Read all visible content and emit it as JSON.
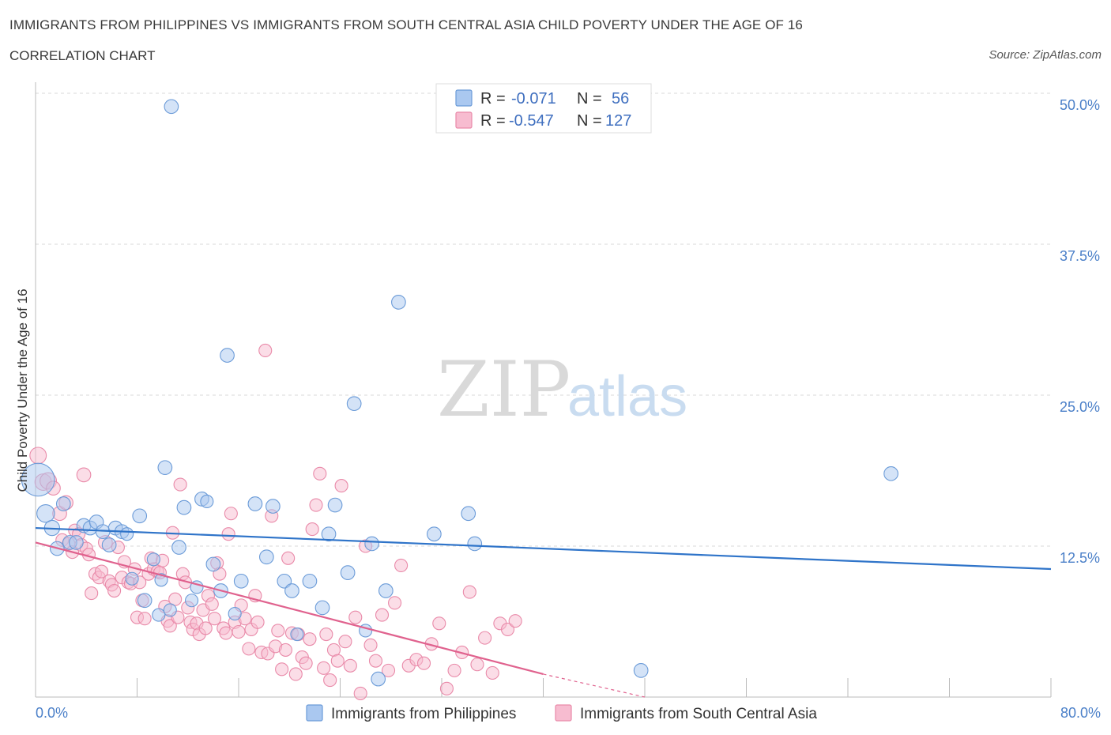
{
  "header": {
    "title": "IMMIGRANTS FROM PHILIPPINES VS IMMIGRANTS FROM SOUTH CENTRAL ASIA CHILD POVERTY UNDER THE AGE OF 16",
    "subtitle": "CORRELATION CHART",
    "source": "Source: ZipAtlas.com"
  },
  "watermark": {
    "zip": "ZIP",
    "atlas": "atlas"
  },
  "colors": {
    "blue_fill": "#aac8f0",
    "blue_stroke": "#6b9bd8",
    "blue_line": "#2f74c9",
    "pink_fill": "#f7bcd0",
    "pink_stroke": "#e98aa9",
    "pink_line": "#e0628e",
    "grid": "#d8d8d8",
    "axis_text": "#4a7fc8"
  },
  "chart_data": {
    "type": "scatter",
    "title": "IMMIGRANTS FROM PHILIPPINES VS IMMIGRANTS FROM SOUTH CENTRAL ASIA CHILD POVERTY UNDER THE AGE OF 16",
    "subtitle": "CORRELATION CHART",
    "xlabel": "",
    "ylabel": "Child Poverty Under the Age of 16",
    "xlim": [
      0,
      80
    ],
    "ylim": [
      0,
      50
    ],
    "x_tick_labels": [
      "0.0%",
      "80.0%"
    ],
    "y_ticks": [
      12.5,
      25.0,
      37.5,
      50.0
    ],
    "y_tick_labels": [
      "12.5%",
      "25.0%",
      "37.5%",
      "50.0%"
    ],
    "grid": true,
    "legend_position": "top-center",
    "legend": [
      {
        "r_label": "R =",
        "r_value": "-0.071",
        "n_label": "N =",
        "n_value": "56"
      },
      {
        "r_label": "R =",
        "r_value": "-0.547",
        "n_label": "N =",
        "n_value": "127"
      }
    ],
    "series": [
      {
        "name": "Immigrants from Philippines",
        "color": "#aac8f0",
        "trend": {
          "x": [
            0,
            80
          ],
          "y": [
            14.0,
            10.6
          ]
        },
        "points": [
          [
            0.2,
            18.0,
            26
          ],
          [
            0.8,
            15.2,
            14
          ],
          [
            1.3,
            14.0,
            12
          ],
          [
            1.7,
            12.3,
            11
          ],
          [
            2.2,
            16.0,
            11
          ],
          [
            2.7,
            12.8,
            11
          ],
          [
            3.2,
            12.8,
            11
          ],
          [
            3.8,
            14.2,
            11
          ],
          [
            4.3,
            14.0,
            11
          ],
          [
            4.8,
            14.5,
            11
          ],
          [
            5.3,
            13.7,
            11
          ],
          [
            5.8,
            12.6,
            11
          ],
          [
            6.3,
            14.0,
            11
          ],
          [
            6.8,
            13.7,
            11
          ],
          [
            7.2,
            13.5,
            10
          ],
          [
            7.6,
            9.8,
            10
          ],
          [
            8.2,
            15.0,
            11
          ],
          [
            8.6,
            8.0,
            11
          ],
          [
            9.3,
            11.4,
            10
          ],
          [
            9.7,
            6.8,
            10
          ],
          [
            9.9,
            9.7,
            10
          ],
          [
            10.2,
            19.0,
            11
          ],
          [
            10.6,
            7.2,
            10
          ],
          [
            10.7,
            48.9,
            11
          ],
          [
            11.3,
            12.4,
            11
          ],
          [
            11.7,
            15.7,
            11
          ],
          [
            12.3,
            8.0,
            10
          ],
          [
            12.7,
            9.1,
            10
          ],
          [
            13.1,
            16.4,
            11
          ],
          [
            13.5,
            16.2,
            10
          ],
          [
            14.0,
            11.0,
            11
          ],
          [
            14.6,
            8.8,
            11
          ],
          [
            15.1,
            28.3,
            11
          ],
          [
            15.7,
            6.9,
            10
          ],
          [
            16.2,
            9.6,
            11
          ],
          [
            17.3,
            16.0,
            11
          ],
          [
            18.2,
            11.6,
            11
          ],
          [
            18.7,
            15.8,
            11
          ],
          [
            19.6,
            9.6,
            11
          ],
          [
            20.2,
            8.8,
            11
          ],
          [
            20.6,
            5.2,
            10
          ],
          [
            21.6,
            9.6,
            11
          ],
          [
            22.6,
            7.4,
            11
          ],
          [
            23.1,
            13.5,
            11
          ],
          [
            23.6,
            15.9,
            11
          ],
          [
            24.6,
            10.3,
            11
          ],
          [
            25.1,
            24.3,
            11
          ],
          [
            26.0,
            5.5,
            10
          ],
          [
            26.5,
            12.7,
            11
          ],
          [
            27.0,
            1.5,
            11
          ],
          [
            27.6,
            8.8,
            11
          ],
          [
            28.6,
            32.7,
            11
          ],
          [
            31.4,
            13.5,
            11
          ],
          [
            34.1,
            15.2,
            11
          ],
          [
            34.6,
            12.7,
            11
          ],
          [
            47.7,
            2.2,
            11
          ],
          [
            67.4,
            18.5,
            11
          ]
        ]
      },
      {
        "name": "Immigrants from South Central Asia",
        "color": "#f7bcd0",
        "trend": {
          "x": [
            0,
            40
          ],
          "y": [
            12.8,
            1.9
          ]
        },
        "trend_dashed": {
          "x": [
            40,
            48
          ],
          "y": [
            1.9,
            0.0
          ]
        },
        "points": [
          [
            0.2,
            20.0,
            13
          ],
          [
            0.6,
            17.8,
            13
          ],
          [
            1.0,
            17.9,
            13
          ],
          [
            1.4,
            17.3,
            11
          ],
          [
            1.9,
            15.2,
            11
          ],
          [
            2.1,
            13.0,
            10
          ],
          [
            2.4,
            16.1,
            11
          ],
          [
            2.6,
            12.7,
            10
          ],
          [
            2.9,
            12.0,
            10
          ],
          [
            3.1,
            13.8,
            10
          ],
          [
            3.4,
            13.5,
            10
          ],
          [
            3.6,
            12.6,
            10
          ],
          [
            3.8,
            18.4,
            11
          ],
          [
            4.0,
            12.3,
            10
          ],
          [
            4.2,
            11.8,
            10
          ],
          [
            4.4,
            8.6,
            10
          ],
          [
            4.7,
            10.2,
            10
          ],
          [
            5.0,
            9.9,
            10
          ],
          [
            5.2,
            10.4,
            10
          ],
          [
            5.5,
            12.8,
            11
          ],
          [
            5.8,
            9.6,
            10
          ],
          [
            6.0,
            9.3,
            10
          ],
          [
            6.2,
            8.8,
            10
          ],
          [
            6.5,
            12.4,
            10
          ],
          [
            6.8,
            9.9,
            10
          ],
          [
            7.0,
            11.2,
            10
          ],
          [
            7.3,
            9.5,
            10
          ],
          [
            7.5,
            9.4,
            10
          ],
          [
            7.8,
            10.6,
            10
          ],
          [
            8.0,
            6.6,
            10
          ],
          [
            8.2,
            9.5,
            10
          ],
          [
            8.4,
            8.0,
            10
          ],
          [
            8.6,
            6.5,
            10
          ],
          [
            8.9,
            10.2,
            10
          ],
          [
            9.1,
            11.5,
            10
          ],
          [
            9.3,
            10.6,
            10
          ],
          [
            9.6,
            10.4,
            10
          ],
          [
            9.8,
            10.3,
            10
          ],
          [
            10.0,
            11.3,
            10
          ],
          [
            10.2,
            7.5,
            10
          ],
          [
            10.4,
            6.3,
            10
          ],
          [
            10.6,
            5.9,
            10
          ],
          [
            10.8,
            13.6,
            10
          ],
          [
            11.0,
            8.1,
            10
          ],
          [
            11.2,
            6.6,
            10
          ],
          [
            11.4,
            17.6,
            10
          ],
          [
            11.6,
            10.2,
            10
          ],
          [
            11.8,
            9.5,
            10
          ],
          [
            12.0,
            7.4,
            10
          ],
          [
            12.2,
            6.2,
            10
          ],
          [
            12.4,
            5.6,
            10
          ],
          [
            12.7,
            6.1,
            10
          ],
          [
            12.9,
            5.2,
            10
          ],
          [
            13.2,
            7.2,
            10
          ],
          [
            13.4,
            5.7,
            10
          ],
          [
            13.6,
            8.4,
            10
          ],
          [
            13.9,
            7.7,
            10
          ],
          [
            14.1,
            6.5,
            10
          ],
          [
            14.3,
            11.1,
            10
          ],
          [
            14.5,
            10.2,
            10
          ],
          [
            14.8,
            5.7,
            10
          ],
          [
            15.0,
            5.3,
            10
          ],
          [
            15.2,
            13.5,
            10
          ],
          [
            15.4,
            15.2,
            10
          ],
          [
            15.7,
            6.2,
            10
          ],
          [
            16.0,
            5.4,
            10
          ],
          [
            16.2,
            7.6,
            10
          ],
          [
            16.5,
            6.5,
            10
          ],
          [
            16.8,
            4.0,
            10
          ],
          [
            17.0,
            5.6,
            10
          ],
          [
            17.3,
            8.4,
            10
          ],
          [
            17.5,
            6.2,
            10
          ],
          [
            17.8,
            3.7,
            10
          ],
          [
            18.1,
            28.7,
            10
          ],
          [
            18.3,
            3.6,
            10
          ],
          [
            18.6,
            15.0,
            10
          ],
          [
            18.9,
            4.2,
            10
          ],
          [
            19.1,
            5.5,
            10
          ],
          [
            19.4,
            2.3,
            10
          ],
          [
            19.7,
            3.9,
            10
          ],
          [
            19.9,
            11.5,
            10
          ],
          [
            20.2,
            5.3,
            10
          ],
          [
            20.5,
            1.9,
            10
          ],
          [
            20.7,
            5.2,
            10
          ],
          [
            21.0,
            3.3,
            10
          ],
          [
            21.3,
            2.8,
            10
          ],
          [
            21.6,
            4.8,
            10
          ],
          [
            21.8,
            13.9,
            10
          ],
          [
            22.1,
            15.9,
            10
          ],
          [
            22.4,
            18.5,
            10
          ],
          [
            22.7,
            2.4,
            10
          ],
          [
            22.9,
            5.2,
            10
          ],
          [
            23.2,
            1.4,
            10
          ],
          [
            23.5,
            3.9,
            10
          ],
          [
            23.8,
            3.0,
            10
          ],
          [
            24.1,
            17.5,
            10
          ],
          [
            24.4,
            4.6,
            10
          ],
          [
            24.8,
            2.6,
            10
          ],
          [
            25.2,
            6.6,
            10
          ],
          [
            25.6,
            0.3,
            10
          ],
          [
            26.0,
            12.5,
            10
          ],
          [
            26.4,
            4.3,
            10
          ],
          [
            26.8,
            3.0,
            10
          ],
          [
            27.3,
            6.8,
            10
          ],
          [
            27.8,
            2.2,
            10
          ],
          [
            28.3,
            7.8,
            10
          ],
          [
            28.8,
            10.9,
            10
          ],
          [
            29.4,
            2.6,
            10
          ],
          [
            30.0,
            3.1,
            10
          ],
          [
            30.6,
            2.8,
            10
          ],
          [
            31.2,
            4.4,
            10
          ],
          [
            31.8,
            6.1,
            10
          ],
          [
            32.4,
            0.7,
            10
          ],
          [
            33.0,
            2.2,
            10
          ],
          [
            33.6,
            3.7,
            10
          ],
          [
            34.2,
            8.7,
            10
          ],
          [
            34.8,
            2.7,
            10
          ],
          [
            35.4,
            4.9,
            10
          ],
          [
            36.0,
            2.0,
            10
          ],
          [
            36.6,
            6.1,
            10
          ],
          [
            37.2,
            5.6,
            10
          ],
          [
            37.8,
            6.3,
            10
          ]
        ]
      }
    ]
  }
}
